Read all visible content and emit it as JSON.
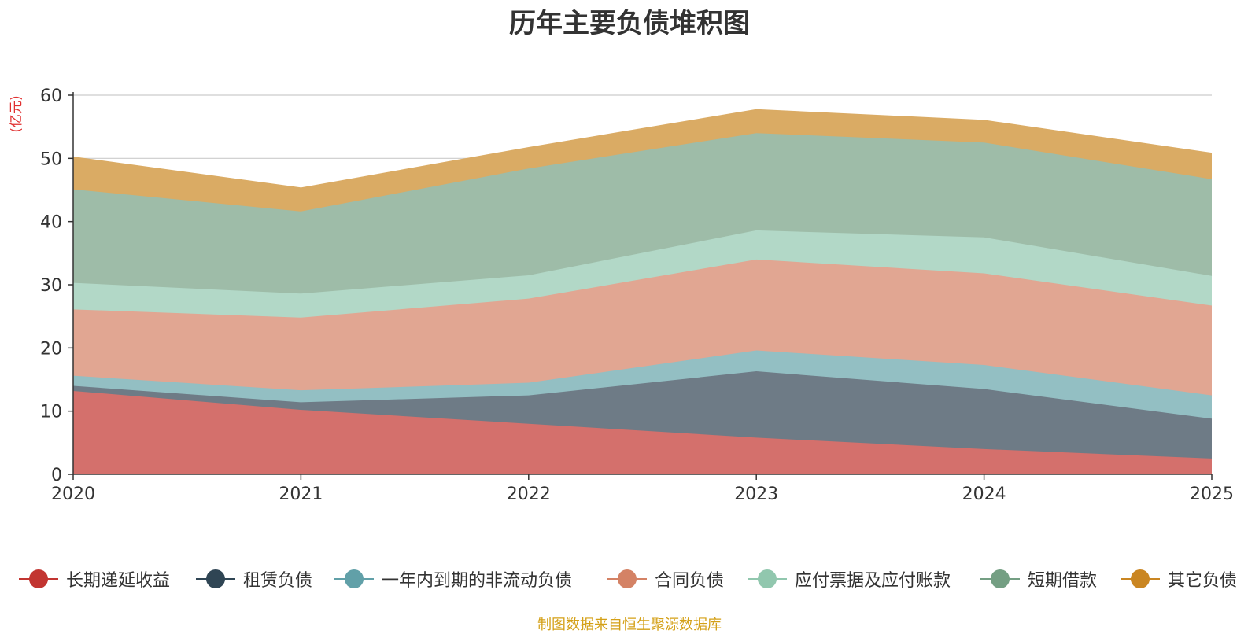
{
  "title": "历年主要负债堆积图",
  "unit_label": "(亿元)",
  "source_text": "制图数据来自恒生聚源数据库",
  "chart_data": {
    "type": "area",
    "stacked": true,
    "title": "历年主要负债堆积图",
    "ylabel": "(亿元)",
    "xlabel": "",
    "ylim": [
      0,
      60
    ],
    "yticks": [
      0,
      10,
      20,
      30,
      40,
      50,
      60
    ],
    "grid": true,
    "legend_position": "bottom",
    "categories": [
      "2020",
      "2021",
      "2022",
      "2023",
      "2024",
      "2025"
    ],
    "series": [
      {
        "name": "长期递延收益",
        "color": "#c23531",
        "fill": "#d4706c",
        "values": [
          13.2,
          10.2,
          8.0,
          5.8,
          4.0,
          2.5
        ]
      },
      {
        "name": "租赁负债",
        "color": "#2f4554",
        "fill": "#6e7b86",
        "values": [
          0.8,
          1.2,
          4.5,
          10.5,
          9.5,
          6.3
        ]
      },
      {
        "name": "一年内到期的非流动负债",
        "color": "#61a0a8",
        "fill": "#93bfc3",
        "values": [
          1.6,
          1.9,
          2.0,
          3.3,
          3.8,
          3.7
        ]
      },
      {
        "name": "合同负债",
        "color": "#d48265",
        "fill": "#e1a692",
        "values": [
          10.5,
          11.5,
          13.3,
          14.4,
          14.5,
          14.2
        ]
      },
      {
        "name": "应付票据及应付账款",
        "color": "#91c7ae",
        "fill": "#b2d8c7",
        "values": [
          4.2,
          3.8,
          3.7,
          4.6,
          5.7,
          4.7
        ]
      },
      {
        "name": "短期借款",
        "color": "#749f83",
        "fill": "#9ebca8",
        "values": [
          14.8,
          13.0,
          16.9,
          15.4,
          15.0,
          15.3
        ]
      },
      {
        "name": "其它负债",
        "color": "#ca8622",
        "fill": "#daab64",
        "values": [
          5.1,
          3.7,
          3.3,
          3.7,
          3.5,
          4.1
        ]
      }
    ]
  }
}
